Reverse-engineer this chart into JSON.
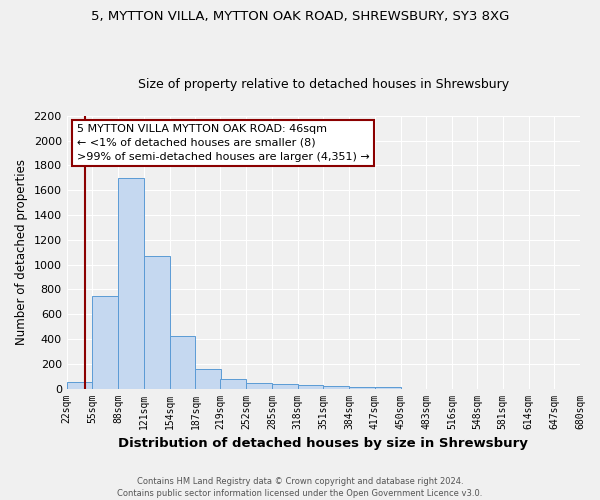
{
  "title_line1": "5, MYTTON VILLA, MYTTON OAK ROAD, SHREWSBURY, SY3 8XG",
  "title_line2": "Size of property relative to detached houses in Shrewsbury",
  "xlabel": "Distribution of detached houses by size in Shrewsbury",
  "ylabel": "Number of detached properties",
  "bins": [
    22,
    55,
    88,
    121,
    154,
    187,
    219,
    252,
    285,
    318,
    351,
    384,
    417,
    450,
    483,
    516,
    548,
    581,
    614,
    647,
    680
  ],
  "bar_heights": [
    55,
    750,
    1700,
    1070,
    420,
    160,
    75,
    45,
    35,
    25,
    20,
    15,
    10,
    0,
    0,
    0,
    0,
    0,
    0,
    0
  ],
  "bar_color": "#c5d8f0",
  "bar_edge_color": "#5b9bd5",
  "vline_x": 46,
  "vline_color": "#8b0000",
  "ylim": [
    0,
    2200
  ],
  "yticks": [
    0,
    200,
    400,
    600,
    800,
    1000,
    1200,
    1400,
    1600,
    1800,
    2000,
    2200
  ],
  "annotation_text": "5 MYTTON VILLA MYTTON OAK ROAD: 46sqm\n← <1% of detached houses are smaller (8)\n>99% of semi-detached houses are larger (4,351) →",
  "annotation_box_color": "#ffffff",
  "annotation_box_edge": "#8b0000",
  "footnote": "Contains HM Land Registry data © Crown copyright and database right 2024.\nContains public sector information licensed under the Open Government Licence v3.0.",
  "bg_color": "#f0f0f0",
  "grid_color": "#ffffff",
  "title1_fontsize": 9.5,
  "title2_fontsize": 9,
  "ylabel_fontsize": 8.5,
  "xlabel_fontsize": 9.5,
  "tick_fontsize": 7,
  "annot_fontsize": 8,
  "footnote_fontsize": 6
}
